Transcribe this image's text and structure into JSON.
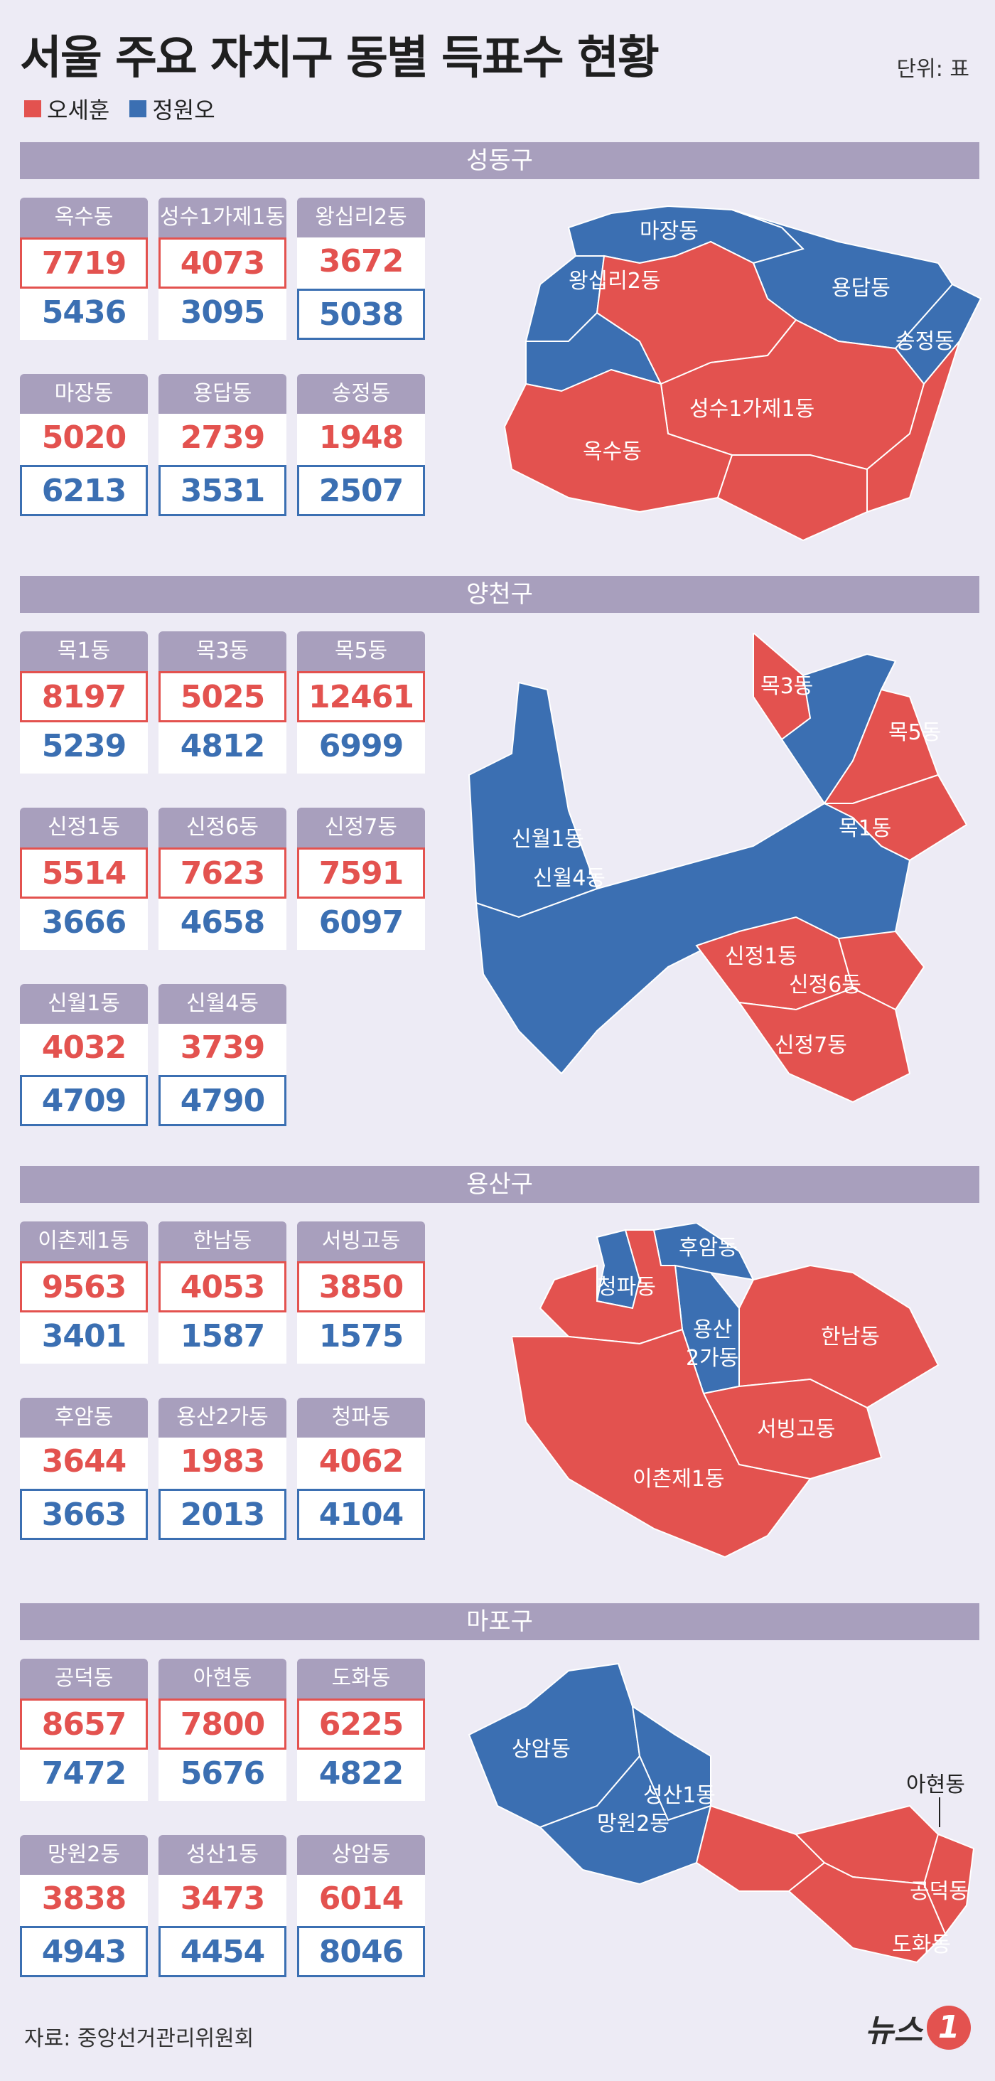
{
  "title": "서울 주요 자치구 동별 득표수 현황",
  "unit": "단위: 표",
  "legend": [
    {
      "name": "오세훈",
      "color": "#e3524f"
    },
    {
      "name": "정원오",
      "color": "#3b6fb2"
    }
  ],
  "colors": {
    "oh": "#e3524f",
    "jung": "#3b6fb2",
    "header": "#a89fbd",
    "background": "#edebf5"
  },
  "chart_data": {
    "type": "table",
    "title": "서울 주요 자치구 동별 득표수 현황",
    "series": [
      {
        "name": "오세훈"
      },
      {
        "name": "정원오"
      }
    ],
    "districts": [
      {
        "name": "성동구",
        "dongs": [
          {
            "name": "옥수동",
            "oh": 7719,
            "jung": 5436
          },
          {
            "name": "성수1가제1동",
            "oh": 4073,
            "jung": 3095
          },
          {
            "name": "왕십리2동",
            "oh": 3672,
            "jung": 5038
          },
          {
            "name": "마장동",
            "oh": 5020,
            "jung": 6213
          },
          {
            "name": "용답동",
            "oh": 2739,
            "jung": 3531
          },
          {
            "name": "송정동",
            "oh": 1948,
            "jung": 2507
          }
        ]
      },
      {
        "name": "양천구",
        "dongs": [
          {
            "name": "목1동",
            "oh": 8197,
            "jung": 5239
          },
          {
            "name": "목3동",
            "oh": 5025,
            "jung": 4812
          },
          {
            "name": "목5동",
            "oh": 12461,
            "jung": 6999
          },
          {
            "name": "신정1동",
            "oh": 5514,
            "jung": 3666
          },
          {
            "name": "신정6동",
            "oh": 7623,
            "jung": 4658
          },
          {
            "name": "신정7동",
            "oh": 7591,
            "jung": 6097
          },
          {
            "name": "신월1동",
            "oh": 4032,
            "jung": 4709
          },
          {
            "name": "신월4동",
            "oh": 3739,
            "jung": 4790
          }
        ]
      },
      {
        "name": "용산구",
        "dongs": [
          {
            "name": "이촌제1동",
            "oh": 9563,
            "jung": 3401
          },
          {
            "name": "한남동",
            "oh": 4053,
            "jung": 1587
          },
          {
            "name": "서빙고동",
            "oh": 3850,
            "jung": 1575
          },
          {
            "name": "후암동",
            "oh": 3644,
            "jung": 3663
          },
          {
            "name": "용산2가동",
            "oh": 1983,
            "jung": 2013
          },
          {
            "name": "청파동",
            "oh": 4062,
            "jung": 4104
          }
        ]
      },
      {
        "name": "마포구",
        "dongs": [
          {
            "name": "공덕동",
            "oh": 8657,
            "jung": 7472
          },
          {
            "name": "아현동",
            "oh": 7800,
            "jung": 5676
          },
          {
            "name": "도화동",
            "oh": 6225,
            "jung": 4822
          },
          {
            "name": "망원2동",
            "oh": 3838,
            "jung": 4943
          },
          {
            "name": "성산1동",
            "oh": 3473,
            "jung": 4454
          },
          {
            "name": "상암동",
            "oh": 6014,
            "jung": 8046
          }
        ]
      }
    ]
  },
  "map_labels": {
    "seongdong": [
      "마장동",
      "왕십리2동",
      "용답동",
      "송정동",
      "성수1가제1동",
      "옥수동"
    ],
    "yangcheon": [
      "목3동",
      "목5동",
      "신월1동",
      "목1동",
      "신월4동",
      "신정1동",
      "신정6동",
      "신정7동"
    ],
    "yongsan": [
      "후암동",
      "청파동",
      "용산",
      "2가동",
      "한남동",
      "서빙고동",
      "이촌제1동"
    ],
    "mapo": [
      "상암동",
      "성산1동",
      "망원2동",
      "아현동",
      "공덕동",
      "도화동"
    ]
  },
  "source": "자료: 중앙선거관리위원회",
  "logo": {
    "text": "뉴스",
    "mark": "1"
  }
}
